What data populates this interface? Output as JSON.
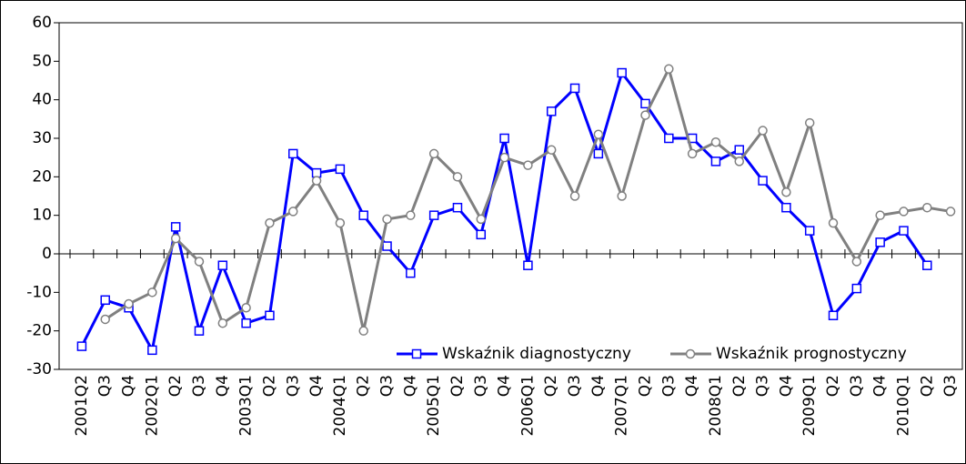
{
  "chart_data": {
    "type": "line",
    "categories": [
      "2001Q2",
      "Q3",
      "Q4",
      "2002Q1",
      "Q2",
      "Q3",
      "Q4",
      "2003Q1",
      "Q2",
      "Q3",
      "Q4",
      "2004Q1",
      "Q2",
      "Q3",
      "Q4",
      "2005Q1",
      "Q2",
      "Q3",
      "Q4",
      "2006Q1",
      "Q2",
      "Q3",
      "Q4",
      "2007Q1",
      "Q2",
      "Q3",
      "Q4",
      "2008Q1",
      "Q2",
      "Q3",
      "Q4",
      "2009Q1",
      "Q2",
      "Q3",
      "Q4",
      "2010Q1",
      "Q2",
      "Q3"
    ],
    "series": [
      {
        "name": "Wskaźnik diagnostyczny",
        "color": "#0000ff",
        "marker": "square",
        "values": [
          -24,
          -12,
          -14,
          -25,
          7,
          -20,
          -3,
          -18,
          -16,
          26,
          21,
          22,
          10,
          2,
          -5,
          10,
          12,
          5,
          30,
          -3,
          37,
          43,
          26,
          47,
          39,
          30,
          30,
          24,
          27,
          19,
          12,
          6,
          -16,
          -9,
          3,
          6,
          -3,
          null
        ]
      },
      {
        "name": "Wskaźnik prognostyczny",
        "color": "#808080",
        "marker": "circle",
        "values": [
          null,
          -17,
          -13,
          -10,
          4,
          -2,
          -18,
          -14,
          8,
          11,
          19,
          8,
          -20,
          9,
          10,
          26,
          20,
          9,
          25,
          23,
          27,
          15,
          31,
          15,
          36,
          48,
          26,
          29,
          24,
          32,
          16,
          34,
          8,
          -2,
          10,
          11,
          12,
          11
        ]
      }
    ],
    "ylim": [
      -30,
      60
    ],
    "yticks": [
      -30,
      -20,
      -10,
      0,
      10,
      20,
      30,
      40,
      50,
      60
    ],
    "legend": "lower right"
  }
}
